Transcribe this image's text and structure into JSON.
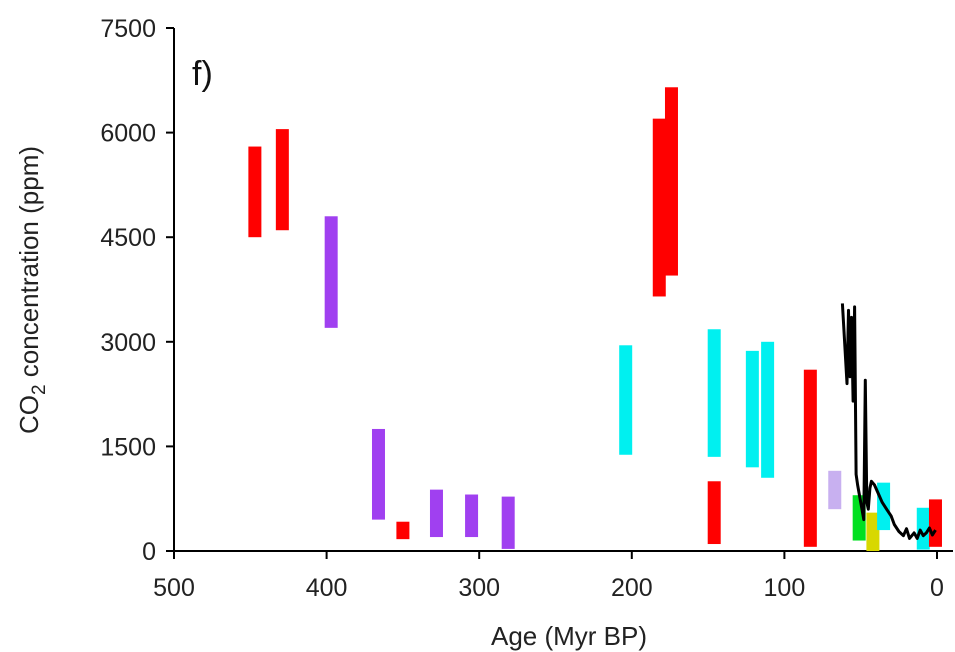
{
  "chart_data": {
    "type": "bar",
    "panel_label": "f)",
    "xlabel": "Age (Myr BP)",
    "ylabel_main": "CO",
    "ylabel_sub": "2",
    "ylabel_rest": " concentration (ppm)",
    "xlim": [
      500,
      0
    ],
    "ylim": [
      0,
      7500
    ],
    "xticks": [
      500,
      400,
      300,
      200,
      100,
      0
    ],
    "xtick_labels": [
      "500",
      "400",
      "300",
      "200",
      "100",
      "0"
    ],
    "yticks": [
      0,
      1500,
      3000,
      4500,
      6000,
      7500
    ],
    "ytick_labels": [
      "0",
      "1500",
      "3000",
      "4500",
      "6000",
      "7500"
    ],
    "colors": {
      "red": "#ff0000",
      "purple": "#a040f0",
      "cyan": "#00f0f0",
      "lavender": "#c8b0f0",
      "green": "#00e020",
      "yellow": "#d8d800",
      "line": "#000000"
    },
    "ranges": [
      {
        "age": 447,
        "low": 4500,
        "high": 5800,
        "color": "red"
      },
      {
        "age": 429,
        "low": 4600,
        "high": 6050,
        "color": "red"
      },
      {
        "age": 397,
        "low": 3200,
        "high": 4800,
        "color": "purple"
      },
      {
        "age": 366,
        "low": 450,
        "high": 1750,
        "color": "purple"
      },
      {
        "age": 350,
        "low": 170,
        "high": 420,
        "color": "red"
      },
      {
        "age": 328,
        "low": 200,
        "high": 880,
        "color": "purple"
      },
      {
        "age": 305,
        "low": 200,
        "high": 810,
        "color": "purple"
      },
      {
        "age": 281,
        "low": 30,
        "high": 780,
        "color": "purple"
      },
      {
        "age": 204,
        "low": 1380,
        "high": 2950,
        "color": "cyan"
      },
      {
        "age": 182,
        "low": 3650,
        "high": 6200,
        "color": "red"
      },
      {
        "age": 174,
        "low": 3950,
        "high": 6650,
        "color": "red"
      },
      {
        "age": 146,
        "low": 1350,
        "high": 3180,
        "color": "cyan"
      },
      {
        "age": 146,
        "low": 100,
        "high": 1000,
        "color": "red"
      },
      {
        "age": 121,
        "low": 1200,
        "high": 2870,
        "color": "cyan"
      },
      {
        "age": 111,
        "low": 1050,
        "high": 3000,
        "color": "cyan"
      },
      {
        "age": 83,
        "low": 60,
        "high": 2600,
        "color": "red"
      },
      {
        "age": 67,
        "low": 600,
        "high": 1150,
        "color": "lavender"
      },
      {
        "age": 51,
        "low": 150,
        "high": 800,
        "color": "green"
      },
      {
        "age": 42,
        "low": 0,
        "high": 550,
        "color": "yellow"
      },
      {
        "age": 35,
        "low": 300,
        "high": 980,
        "color": "cyan"
      },
      {
        "age": 9,
        "low": 20,
        "high": 620,
        "color": "cyan"
      },
      {
        "age": 1,
        "low": 60,
        "high": 740,
        "color": "red"
      }
    ],
    "line_series": {
      "color": "line",
      "x": [
        62,
        60,
        59,
        58,
        57,
        56,
        55,
        54,
        53,
        52,
        50,
        48,
        47,
        46,
        45,
        44,
        43,
        41,
        39,
        36,
        33,
        30,
        28,
        25,
        22,
        20,
        18,
        15,
        13,
        11,
        9,
        7,
        5,
        3,
        1
      ],
      "y": [
        3550,
        2800,
        2400,
        3450,
        2500,
        3350,
        2150,
        3500,
        1100,
        950,
        700,
        450,
        2450,
        700,
        600,
        900,
        1000,
        950,
        850,
        700,
        600,
        500,
        380,
        280,
        220,
        320,
        180,
        260,
        180,
        300,
        220,
        260,
        330,
        230,
        300
      ]
    }
  }
}
